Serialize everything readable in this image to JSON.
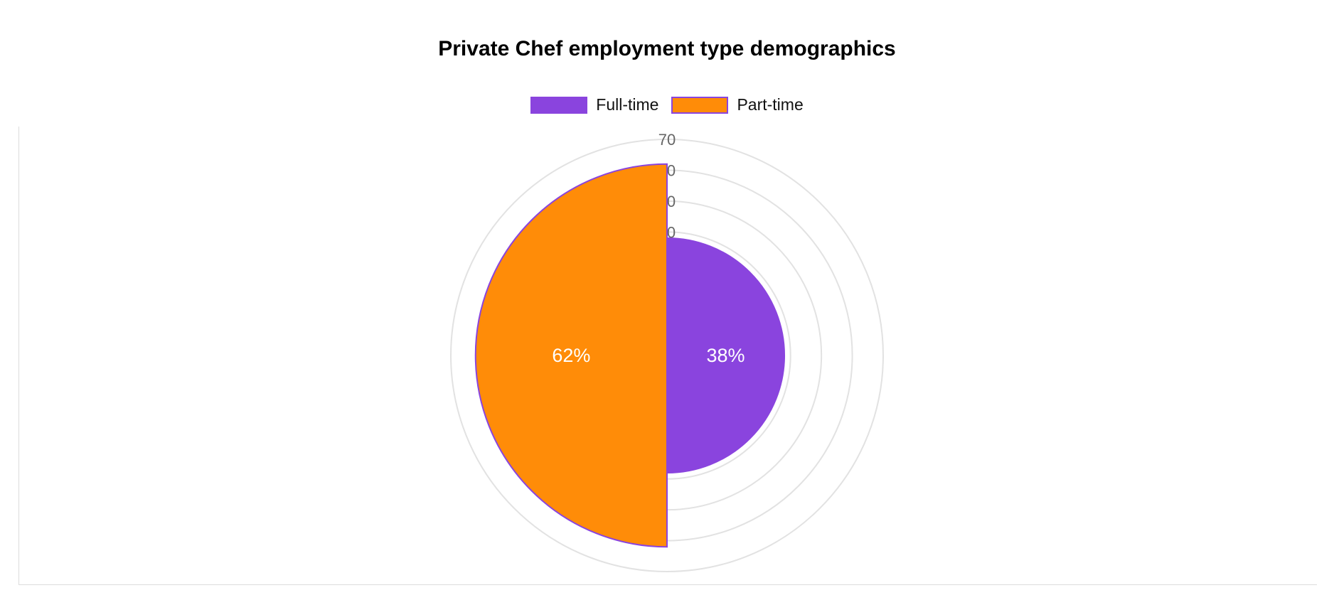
{
  "chart_data": {
    "type": "polarArea",
    "title": "Private Chef employment type demographics",
    "categories": [
      "Full-time",
      "Part-time"
    ],
    "values": [
      38,
      62
    ],
    "data_labels": [
      "38%",
      "62%"
    ],
    "colors": [
      "#8a44de",
      "#ff8c08"
    ],
    "border_color": "#8a44de",
    "r_axis": {
      "min": 0,
      "max": 70,
      "ticks": [
        0,
        10,
        20,
        30,
        40,
        50,
        60,
        70
      ],
      "tick_labels_visible": [
        "70",
        "0",
        "0",
        "0"
      ]
    },
    "legend": {
      "position": "top"
    }
  }
}
